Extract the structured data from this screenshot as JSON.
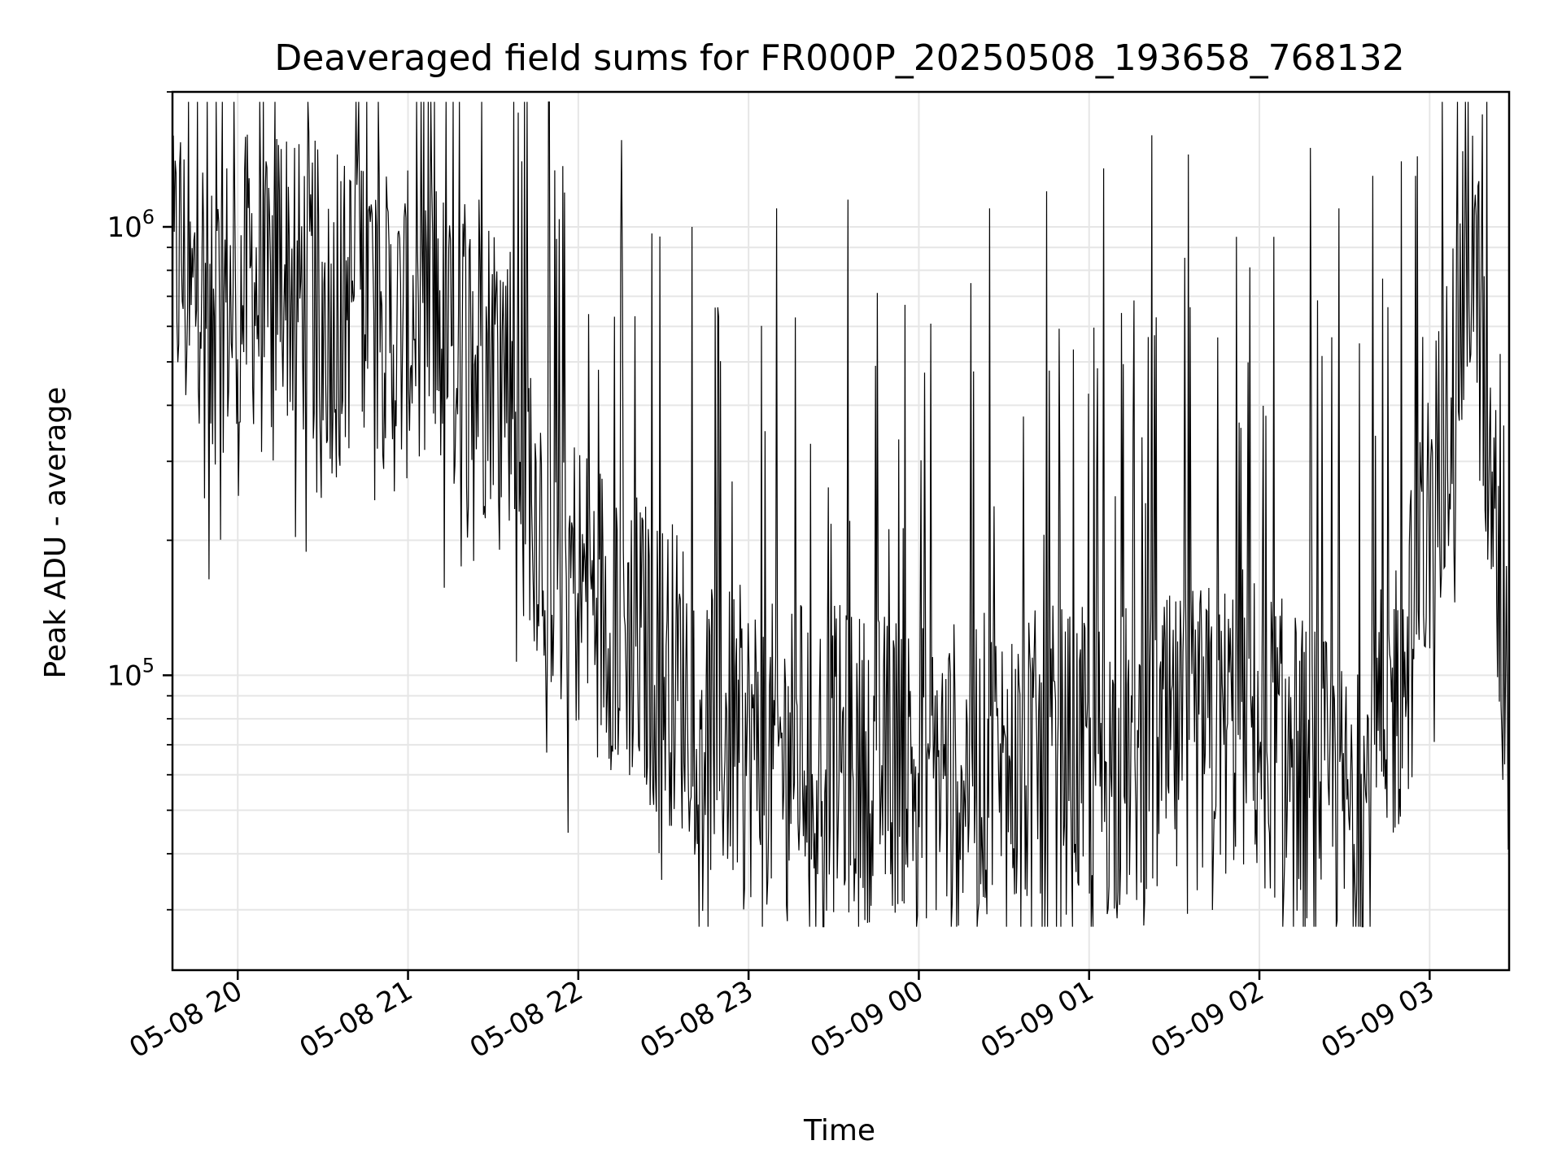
{
  "chart_data": {
    "type": "line",
    "title": "Deaveraged field sums for FR000P_20250508_193658_768132",
    "xlabel": "Time",
    "ylabel": "Peak ADU - average",
    "yscale": "log",
    "ylim": [
      22000,
      2000000
    ],
    "xlim": [
      "2025-05-08 19:37",
      "2025-05-09 03:28"
    ],
    "grid": true,
    "colors": {
      "line": "#000000",
      "grid": "#e6e6e6",
      "axis": "#000000"
    },
    "x_ticks": [
      {
        "t": "2025-05-08 20:00",
        "label": "05-08 20"
      },
      {
        "t": "2025-05-08 21:00",
        "label": "05-08 21"
      },
      {
        "t": "2025-05-08 22:00",
        "label": "05-08 22"
      },
      {
        "t": "2025-05-08 23:00",
        "label": "05-08 23"
      },
      {
        "t": "2025-05-09 00:00",
        "label": "05-09 00"
      },
      {
        "t": "2025-05-09 01:00",
        "label": "05-09 01"
      },
      {
        "t": "2025-05-09 02:00",
        "label": "05-09 02"
      },
      {
        "t": "2025-05-09 03:00",
        "label": "05-09 03"
      }
    ],
    "y_major_ticks": [
      {
        "v": 100000,
        "base": "10",
        "exp": "5"
      },
      {
        "v": 1000000,
        "base": "10",
        "exp": "6"
      }
    ],
    "series": [
      {
        "x": [
          "2025-05-08 19:37",
          "2025-05-08 19:40",
          "2025-05-08 19:43",
          "2025-05-08 19:47",
          "2025-05-08 19:50",
          "2025-05-08 19:55",
          "2025-05-08 20:00",
          "2025-05-08 20:05",
          "2025-05-08 20:10",
          "2025-05-08 20:15",
          "2025-05-08 20:20",
          "2025-05-08 20:25",
          "2025-05-08 20:30",
          "2025-05-08 20:35",
          "2025-05-08 20:40",
          "2025-05-08 20:45",
          "2025-05-08 20:50",
          "2025-05-08 20:55",
          "2025-05-08 21:00",
          "2025-05-08 21:05",
          "2025-05-08 21:10",
          "2025-05-08 21:15",
          "2025-05-08 21:20",
          "2025-05-08 21:25",
          "2025-05-08 21:30",
          "2025-05-08 21:35",
          "2025-05-08 21:40",
          "2025-05-08 21:45",
          "2025-05-08 21:50",
          "2025-05-08 21:55",
          "2025-05-08 22:00",
          "2025-05-08 22:05",
          "2025-05-08 22:10",
          "2025-05-08 22:15",
          "2025-05-08 22:20",
          "2025-05-08 22:25",
          "2025-05-08 22:30",
          "2025-05-08 22:35",
          "2025-05-08 22:40",
          "2025-05-08 22:45",
          "2025-05-08 22:50",
          "2025-05-08 22:55",
          "2025-05-08 23:00",
          "2025-05-08 23:05",
          "2025-05-08 23:10",
          "2025-05-08 23:15",
          "2025-05-08 23:20",
          "2025-05-08 23:25",
          "2025-05-08 23:30",
          "2025-05-08 23:35",
          "2025-05-08 23:40",
          "2025-05-08 23:45",
          "2025-05-08 23:50",
          "2025-05-08 23:55",
          "2025-05-09 00:00",
          "2025-05-09 00:05",
          "2025-05-09 00:10",
          "2025-05-09 00:15",
          "2025-05-09 00:20",
          "2025-05-09 00:25",
          "2025-05-09 00:30",
          "2025-05-09 00:35",
          "2025-05-09 00:40",
          "2025-05-09 00:45",
          "2025-05-09 00:50",
          "2025-05-09 00:55",
          "2025-05-09 01:00",
          "2025-05-09 01:05",
          "2025-05-09 01:10",
          "2025-05-09 01:15",
          "2025-05-09 01:20",
          "2025-05-09 01:25",
          "2025-05-09 01:30",
          "2025-05-09 01:35",
          "2025-05-09 01:40",
          "2025-05-09 01:45",
          "2025-05-09 01:50",
          "2025-05-09 01:55",
          "2025-05-09 02:00",
          "2025-05-09 02:05",
          "2025-05-09 02:10",
          "2025-05-09 02:15",
          "2025-05-09 02:20",
          "2025-05-09 02:25",
          "2025-05-09 02:30",
          "2025-05-09 02:35",
          "2025-05-09 02:40",
          "2025-05-09 02:45",
          "2025-05-09 02:50",
          "2025-05-09 02:55",
          "2025-05-09 03:00",
          "2025-05-09 03:05",
          "2025-05-09 03:10",
          "2025-05-09 03:15",
          "2025-05-09 03:20",
          "2025-05-09 03:28"
        ],
        "y": [
          700000,
          900000,
          600000,
          850000,
          500000,
          700000,
          650000,
          800000,
          600000,
          900000,
          700000,
          750000,
          650000,
          600000,
          700000,
          800000,
          650000,
          550000,
          600000,
          700000,
          650000,
          500000,
          600000,
          450000,
          550000,
          500000,
          350000,
          250000,
          200000,
          180000,
          160000,
          150000,
          140000,
          130000,
          120000,
          110000,
          105000,
          100000,
          90000,
          80000,
          75000,
          72000,
          70000,
          68000,
          65000,
          70000,
          68000,
          66000,
          65000,
          64000,
          63000,
          62000,
          64000,
          65000,
          63000,
          62000,
          61000,
          60000,
          62000,
          63000,
          62000,
          61000,
          63000,
          64000,
          65000,
          64000,
          63000,
          62000,
          64000,
          66000,
          65000,
          67000,
          68000,
          70000,
          72000,
          75000,
          78000,
          80000,
          75000,
          70000,
          65000,
          62000,
          58000,
          55000,
          50000,
          48000,
          60000,
          80000,
          100000,
          140000,
          220000,
          350000,
          550000,
          1000000,
          350000,
          80000
        ]
      }
    ],
    "spikes": [
      {
        "t": "2025-05-08 20:10",
        "v": 1400000
      },
      {
        "t": "2025-05-08 20:20",
        "v": 1500000
      },
      {
        "t": "2025-05-08 20:35",
        "v": 1450000
      },
      {
        "t": "2025-05-08 20:50",
        "v": 1300000
      },
      {
        "t": "2025-05-08 21:10",
        "v": 1200000
      },
      {
        "t": "2025-05-08 21:25",
        "v": 1150000
      },
      {
        "t": "2025-05-08 21:40",
        "v": 1400000
      },
      {
        "t": "2025-05-08 22:15",
        "v": 950000
      },
      {
        "t": "2025-05-08 22:40",
        "v": 1000000
      },
      {
        "t": "2025-05-08 23:10",
        "v": 1100000
      },
      {
        "t": "2025-05-08 23:35",
        "v": 1150000
      },
      {
        "t": "2025-05-08 23:55",
        "v": 670000
      },
      {
        "t": "2025-05-09 00:25",
        "v": 1100000
      },
      {
        "t": "2025-05-09 00:45",
        "v": 1200000
      },
      {
        "t": "2025-05-09 01:05",
        "v": 1350000
      },
      {
        "t": "2025-05-09 01:22",
        "v": 1600000
      },
      {
        "t": "2025-05-09 01:35",
        "v": 1450000
      },
      {
        "t": "2025-05-09 01:52",
        "v": 950000
      },
      {
        "t": "2025-05-09 02:05",
        "v": 950000
      },
      {
        "t": "2025-05-09 02:18",
        "v": 1500000
      },
      {
        "t": "2025-05-09 02:28",
        "v": 1100000
      },
      {
        "t": "2025-05-09 02:40",
        "v": 1300000
      },
      {
        "t": "2025-05-09 02:50",
        "v": 1400000
      },
      {
        "t": "2025-05-09 02:55",
        "v": 1300000
      }
    ]
  }
}
